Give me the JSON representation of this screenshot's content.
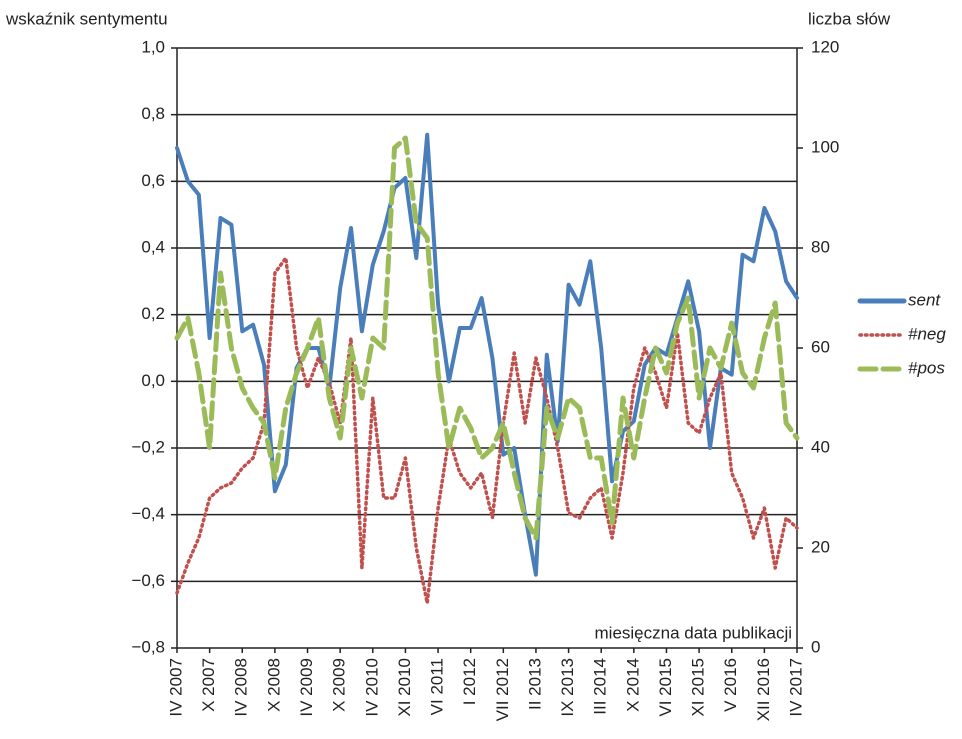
{
  "chart_data": {
    "type": "line",
    "y_label": "wskaźnik sentymentu",
    "y2_label": "liczba słów",
    "annotation": "miesięczna data publikacji",
    "categories": [
      "IV 2007",
      null,
      null,
      "X 2007",
      null,
      null,
      "IV 2008",
      null,
      null,
      "X 2008",
      null,
      null,
      "IV 2009",
      null,
      null,
      "X 2009",
      null,
      null,
      "IV 2010",
      null,
      null,
      "XI 2010",
      null,
      null,
      "VI 2011",
      null,
      null,
      "I 2012",
      null,
      null,
      "VII 2012",
      null,
      null,
      "II 2013",
      null,
      null,
      "IX 2013",
      null,
      null,
      "III 2014",
      null,
      null,
      "X 2014",
      null,
      null,
      "VI 2015",
      null,
      null,
      "XI 2015",
      null,
      null,
      "V 2016",
      null,
      null,
      "XII 2016",
      null,
      null,
      "IV 2017"
    ],
    "series": [
      {
        "name": "sent",
        "color": "#4a7ebb",
        "style": "solid",
        "axis": "y",
        "values": [
          0.7,
          0.6,
          0.56,
          0.13,
          0.49,
          0.47,
          0.15,
          0.17,
          0.05,
          -0.33,
          -0.25,
          0.04,
          0.1,
          0.1,
          -0.02,
          0.28,
          0.46,
          0.15,
          0.35,
          0.45,
          0.58,
          0.61,
          0.37,
          0.74,
          0.23,
          0.0,
          0.16,
          0.16,
          0.25,
          0.07,
          -0.22,
          -0.2,
          -0.4,
          -0.58,
          0.08,
          -0.18,
          0.29,
          0.23,
          0.36,
          0.1,
          -0.3,
          -0.15,
          -0.12,
          0.05,
          0.1,
          0.08,
          0.19,
          0.3,
          0.15,
          -0.2,
          0.04,
          0.02,
          0.38,
          0.36,
          0.52,
          0.45,
          0.3,
          0.25
        ]
      },
      {
        "name": "#neg",
        "color": "#c0504d",
        "style": "dotted",
        "axis": "y2",
        "values": [
          11,
          17,
          22,
          30,
          32,
          33,
          36,
          38,
          45,
          75,
          78,
          60,
          52,
          58,
          53,
          45,
          62,
          16,
          50,
          30,
          30,
          38,
          20,
          9,
          28,
          42,
          35,
          32,
          35,
          26,
          45,
          59,
          45,
          58,
          50,
          40,
          27,
          26,
          30,
          32,
          22,
          35,
          52,
          60,
          55,
          48,
          63,
          45,
          43,
          50,
          55,
          35,
          30,
          22,
          28,
          16,
          26,
          24
        ]
      },
      {
        "name": "#pos",
        "color": "#9bbb59",
        "style": "dashed",
        "axis": "y2",
        "values": [
          62,
          66,
          55,
          40,
          75,
          60,
          52,
          48,
          45,
          34,
          48,
          55,
          60,
          66,
          50,
          42,
          60,
          50,
          62,
          60,
          100,
          102,
          85,
          82,
          55,
          40,
          48,
          44,
          38,
          40,
          45,
          35,
          26,
          22,
          48,
          42,
          50,
          48,
          38,
          38,
          25,
          50,
          38,
          50,
          60,
          55,
          65,
          70,
          50,
          60,
          56,
          65,
          55,
          52,
          62,
          69,
          45,
          42
        ]
      }
    ],
    "ylim": [
      -0.8,
      1.0
    ],
    "yticks": [
      {
        "value": -0.8,
        "label": "−0,8"
      },
      {
        "value": -0.6,
        "label": "−0,6"
      },
      {
        "value": -0.4,
        "label": "−0,4"
      },
      {
        "value": -0.2,
        "label": "−0,2"
      },
      {
        "value": 0,
        "label": "0,0"
      },
      {
        "value": 0.2,
        "label": "0,2"
      },
      {
        "value": 0.4,
        "label": "0,4"
      },
      {
        "value": 0.6,
        "label": "0,6"
      },
      {
        "value": 0.8,
        "label": "0,8"
      },
      {
        "value": 1.0,
        "label": "1,0"
      }
    ],
    "y2lim": [
      0,
      120
    ],
    "y2ticks": [
      0,
      20,
      40,
      60,
      80,
      100,
      120
    ],
    "grid": true,
    "legend": "right"
  }
}
